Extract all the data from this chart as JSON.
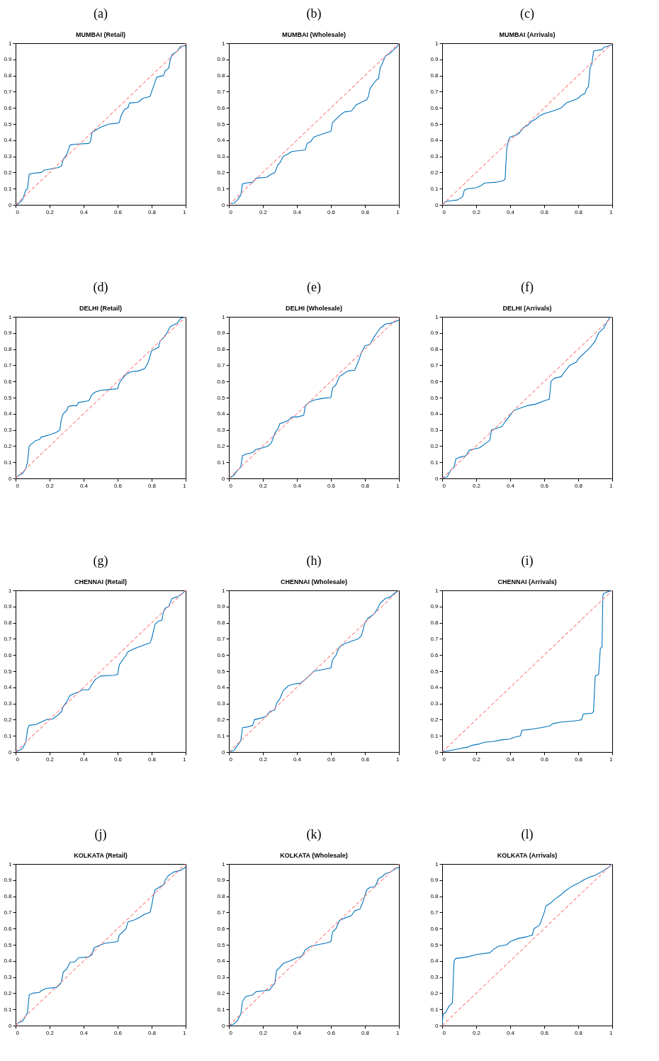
{
  "chart_data": [
    {
      "type": "line",
      "title": "(a)",
      "subtitle": "MUMBAI (Retail)",
      "xlim": [
        0,
        1
      ],
      "xticks": [
        0,
        0.2,
        0.4,
        0.6,
        0.8,
        1
      ],
      "ylim": [
        0,
        1
      ],
      "yticks": [
        0,
        0.1,
        0.2,
        0.3,
        0.4,
        0.5,
        0.6,
        0.7,
        0.8,
        0.9,
        1
      ],
      "series": [
        {
          "color": "#0072bd",
          "x": [
            0,
            0.02,
            0.04,
            0.05,
            0.06,
            0.07,
            0.08,
            0.1,
            0.15,
            0.17,
            0.25,
            0.27,
            0.28,
            0.3,
            0.32,
            0.35,
            0.43,
            0.44,
            0.45,
            0.5,
            0.55,
            0.6,
            0.61,
            0.62,
            0.64,
            0.66,
            0.67,
            0.72,
            0.75,
            0.79,
            0.8,
            0.83,
            0.87,
            0.88,
            0.9,
            0.91,
            0.92,
            0.95,
            0.97,
            1
          ],
          "values": [
            0,
            0.01,
            0.03,
            0.06,
            0.09,
            0.1,
            0.19,
            0.195,
            0.2,
            0.215,
            0.23,
            0.24,
            0.28,
            0.31,
            0.37,
            0.375,
            0.38,
            0.39,
            0.45,
            0.48,
            0.5,
            0.505,
            0.51,
            0.55,
            0.59,
            0.6,
            0.63,
            0.635,
            0.66,
            0.67,
            0.7,
            0.79,
            0.8,
            0.83,
            0.845,
            0.9,
            0.93,
            0.95,
            0.98,
            0.985
          ]
        },
        {
          "color": "#ff8080",
          "line_style": "dashed",
          "x": [
            0,
            1
          ],
          "values": [
            0,
            1
          ]
        }
      ]
    },
    {
      "type": "line",
      "title": "(b)",
      "subtitle": "MUMBAI (Wholesale)",
      "xlim": [
        0,
        1
      ],
      "xticks": [
        0,
        0.2,
        0.4,
        0.6,
        0.8,
        1
      ],
      "ylim": [
        0,
        1
      ],
      "yticks": [
        0,
        0.1,
        0.2,
        0.3,
        0.4,
        0.5,
        0.6,
        0.7,
        0.8,
        0.9,
        1
      ],
      "series": [
        {
          "color": "#0072bd",
          "x": [
            0,
            0.03,
            0.05,
            0.07,
            0.08,
            0.1,
            0.14,
            0.16,
            0.22,
            0.25,
            0.27,
            0.29,
            0.3,
            0.32,
            0.34,
            0.37,
            0.45,
            0.46,
            0.48,
            0.5,
            0.57,
            0.6,
            0.61,
            0.64,
            0.66,
            0.68,
            0.72,
            0.75,
            0.79,
            0.81,
            0.82,
            0.83,
            0.85,
            0.87,
            0.88,
            0.89,
            0.9,
            0.92,
            0.95,
            0.97,
            0.99,
            1
          ],
          "values": [
            0.01,
            0.01,
            0.03,
            0.06,
            0.13,
            0.135,
            0.14,
            0.165,
            0.17,
            0.19,
            0.2,
            0.25,
            0.26,
            0.3,
            0.31,
            0.33,
            0.34,
            0.38,
            0.39,
            0.42,
            0.445,
            0.455,
            0.51,
            0.54,
            0.56,
            0.575,
            0.58,
            0.62,
            0.64,
            0.65,
            0.67,
            0.72,
            0.75,
            0.775,
            0.78,
            0.85,
            0.87,
            0.92,
            0.94,
            0.96,
            0.98,
            1
          ]
        },
        {
          "color": "#ff8080",
          "line_style": "dashed",
          "x": [
            0,
            1
          ],
          "values": [
            0,
            1
          ]
        }
      ]
    },
    {
      "type": "line",
      "title": "(c)",
      "subtitle": "MUMBAI (Arrivals)",
      "xlim": [
        0,
        1
      ],
      "xticks": [
        0,
        0.2,
        0.4,
        0.6,
        0.8,
        1
      ],
      "ylim": [
        0,
        1
      ],
      "yticks": [
        0,
        0.1,
        0.2,
        0.3,
        0.4,
        0.5,
        0.6,
        0.7,
        0.8,
        0.9,
        1
      ],
      "series": [
        {
          "color": "#0072bd",
          "x": [
            0,
            0.02,
            0.05,
            0.09,
            0.12,
            0.13,
            0.15,
            0.2,
            0.23,
            0.25,
            0.32,
            0.36,
            0.37,
            0.38,
            0.39,
            0.4,
            0.43,
            0.45,
            0.48,
            0.5,
            0.53,
            0.55,
            0.57,
            0.6,
            0.65,
            0.7,
            0.73,
            0.78,
            0.8,
            0.82,
            0.84,
            0.85,
            0.86,
            0.87,
            0.88,
            0.89,
            0.9,
            0.94,
            0.95,
            1
          ],
          "values": [
            0,
            0.02,
            0.025,
            0.03,
            0.05,
            0.09,
            0.1,
            0.105,
            0.12,
            0.135,
            0.14,
            0.15,
            0.16,
            0.35,
            0.4,
            0.42,
            0.43,
            0.44,
            0.48,
            0.49,
            0.52,
            0.53,
            0.55,
            0.565,
            0.58,
            0.6,
            0.63,
            0.65,
            0.66,
            0.68,
            0.69,
            0.72,
            0.73,
            0.85,
            0.87,
            0.95,
            0.955,
            0.96,
            0.975,
            0.99
          ]
        },
        {
          "color": "#ff8080",
          "line_style": "dashed",
          "x": [
            0,
            1
          ],
          "values": [
            0,
            1
          ]
        }
      ]
    },
    {
      "type": "line",
      "title": "(d)",
      "subtitle": "DELHI (Retail)",
      "xlim": [
        0,
        1
      ],
      "xticks": [
        0,
        0.2,
        0.4,
        0.6,
        0.8,
        1
      ],
      "ylim": [
        0,
        1
      ],
      "yticks": [
        0,
        0.1,
        0.2,
        0.3,
        0.4,
        0.5,
        0.6,
        0.7,
        0.8,
        0.9,
        1
      ],
      "series": [
        {
          "color": "#0072bd",
          "x": [
            0,
            0.02,
            0.04,
            0.06,
            0.07,
            0.08,
            0.09,
            0.12,
            0.14,
            0.15,
            0.2,
            0.24,
            0.26,
            0.27,
            0.28,
            0.3,
            0.31,
            0.33,
            0.36,
            0.37,
            0.43,
            0.44,
            0.45,
            0.47,
            0.5,
            0.55,
            0.6,
            0.61,
            0.63,
            0.65,
            0.68,
            0.72,
            0.76,
            0.78,
            0.8,
            0.82,
            0.84,
            0.85,
            0.87,
            0.89,
            0.91,
            0.95,
            0.97,
            1
          ],
          "values": [
            0,
            0.02,
            0.03,
            0.06,
            0.1,
            0.2,
            0.21,
            0.235,
            0.24,
            0.255,
            0.27,
            0.285,
            0.3,
            0.37,
            0.4,
            0.42,
            0.445,
            0.45,
            0.45,
            0.47,
            0.48,
            0.5,
            0.52,
            0.535,
            0.545,
            0.55,
            0.555,
            0.59,
            0.62,
            0.645,
            0.66,
            0.665,
            0.68,
            0.72,
            0.79,
            0.8,
            0.81,
            0.85,
            0.87,
            0.9,
            0.94,
            0.96,
            0.99,
            1
          ]
        },
        {
          "color": "#ff8080",
          "line_style": "dashed",
          "x": [
            0,
            1
          ],
          "values": [
            0,
            1
          ]
        }
      ]
    },
    {
      "type": "line",
      "title": "(e)",
      "subtitle": "DELHI (Wholesale)",
      "xlim": [
        0,
        1
      ],
      "xticks": [
        0,
        0.2,
        0.4,
        0.6,
        0.8,
        1
      ],
      "ylim": [
        0,
        1
      ],
      "yticks": [
        0,
        0.1,
        0.2,
        0.3,
        0.4,
        0.5,
        0.6,
        0.7,
        0.8,
        0.9,
        1
      ],
      "series": [
        {
          "color": "#0072bd",
          "x": [
            0,
            0.03,
            0.05,
            0.07,
            0.08,
            0.1,
            0.14,
            0.16,
            0.2,
            0.23,
            0.25,
            0.27,
            0.29,
            0.3,
            0.32,
            0.35,
            0.37,
            0.4,
            0.44,
            0.45,
            0.47,
            0.5,
            0.55,
            0.6,
            0.61,
            0.63,
            0.65,
            0.67,
            0.7,
            0.74,
            0.76,
            0.78,
            0.8,
            0.83,
            0.85,
            0.87,
            0.89,
            0.92,
            0.95,
            0.98,
            1
          ],
          "values": [
            0,
            0.02,
            0.05,
            0.07,
            0.14,
            0.15,
            0.16,
            0.18,
            0.19,
            0.2,
            0.22,
            0.28,
            0.31,
            0.34,
            0.345,
            0.36,
            0.38,
            0.38,
            0.39,
            0.45,
            0.47,
            0.485,
            0.495,
            0.5,
            0.56,
            0.58,
            0.63,
            0.645,
            0.665,
            0.67,
            0.72,
            0.78,
            0.82,
            0.83,
            0.87,
            0.9,
            0.93,
            0.955,
            0.96,
            0.97,
            0.98
          ]
        },
        {
          "color": "#ff8080",
          "line_style": "dashed",
          "x": [
            0,
            1
          ],
          "values": [
            0,
            1
          ]
        }
      ]
    },
    {
      "type": "line",
      "title": "(f)",
      "subtitle": "DELHI (Arrivals)",
      "xlim": [
        0,
        1
      ],
      "xticks": [
        0,
        0.2,
        0.4,
        0.6,
        0.8,
        1
      ],
      "ylim": [
        0,
        1
      ],
      "yticks": [
        0,
        0.1,
        0.2,
        0.3,
        0.4,
        0.5,
        0.6,
        0.7,
        0.8,
        0.9,
        1
      ],
      "series": [
        {
          "color": "#0072bd",
          "x": [
            0,
            0.03,
            0.05,
            0.07,
            0.08,
            0.1,
            0.14,
            0.16,
            0.18,
            0.22,
            0.26,
            0.28,
            0.29,
            0.32,
            0.35,
            0.37,
            0.4,
            0.42,
            0.46,
            0.5,
            0.55,
            0.6,
            0.63,
            0.64,
            0.66,
            0.7,
            0.72,
            0.75,
            0.79,
            0.8,
            0.83,
            0.85,
            0.87,
            0.9,
            0.92,
            0.95,
            0.97,
            0.99,
            1
          ],
          "values": [
            0,
            0.01,
            0.05,
            0.07,
            0.12,
            0.13,
            0.14,
            0.175,
            0.18,
            0.19,
            0.22,
            0.235,
            0.3,
            0.31,
            0.32,
            0.35,
            0.39,
            0.42,
            0.435,
            0.45,
            0.46,
            0.48,
            0.49,
            0.6,
            0.62,
            0.63,
            0.66,
            0.7,
            0.72,
            0.74,
            0.77,
            0.79,
            0.81,
            0.85,
            0.9,
            0.93,
            0.97,
            1,
            1
          ]
        },
        {
          "color": "#ff8080",
          "line_style": "dashed",
          "x": [
            0,
            1
          ],
          "values": [
            0,
            1
          ]
        }
      ]
    },
    {
      "type": "line",
      "title": "(g)",
      "subtitle": "CHENNAI (Retail)",
      "xlim": [
        0,
        1
      ],
      "xticks": [
        0,
        0.2,
        0.4,
        0.6,
        0.8,
        1
      ],
      "ylim": [
        0,
        1
      ],
      "yticks": [
        0,
        0.1,
        0.2,
        0.3,
        0.4,
        0.5,
        0.6,
        0.7,
        0.8,
        0.9,
        1
      ],
      "series": [
        {
          "color": "#0072bd",
          "x": [
            0,
            0.04,
            0.06,
            0.07,
            0.08,
            0.12,
            0.15,
            0.18,
            0.22,
            0.25,
            0.27,
            0.28,
            0.3,
            0.32,
            0.34,
            0.37,
            0.39,
            0.43,
            0.45,
            0.47,
            0.5,
            0.58,
            0.6,
            0.61,
            0.63,
            0.65,
            0.66,
            0.7,
            0.75,
            0.79,
            0.8,
            0.82,
            0.84,
            0.86,
            0.87,
            0.88,
            0.9,
            0.92,
            0.95,
            0.98,
            1
          ],
          "values": [
            0,
            0.02,
            0.06,
            0.14,
            0.165,
            0.17,
            0.185,
            0.2,
            0.205,
            0.23,
            0.25,
            0.28,
            0.31,
            0.35,
            0.36,
            0.37,
            0.385,
            0.385,
            0.42,
            0.45,
            0.47,
            0.475,
            0.48,
            0.54,
            0.57,
            0.6,
            0.62,
            0.64,
            0.66,
            0.675,
            0.7,
            0.79,
            0.81,
            0.815,
            0.87,
            0.89,
            0.9,
            0.95,
            0.96,
            0.98,
            1
          ]
        },
        {
          "color": "#ff8080",
          "line_style": "dashed",
          "x": [
            0,
            1
          ],
          "values": [
            0,
            1
          ]
        }
      ]
    },
    {
      "type": "line",
      "title": "(h)",
      "subtitle": "CHENNAI (Wholesale)",
      "xlim": [
        0,
        1
      ],
      "xticks": [
        0,
        0.2,
        0.4,
        0.6,
        0.8,
        1
      ],
      "ylim": [
        0,
        1
      ],
      "yticks": [
        0,
        0.1,
        0.2,
        0.3,
        0.4,
        0.5,
        0.6,
        0.7,
        0.8,
        0.9,
        1
      ],
      "series": [
        {
          "color": "#0072bd",
          "x": [
            0,
            0.03,
            0.05,
            0.07,
            0.08,
            0.11,
            0.14,
            0.15,
            0.19,
            0.22,
            0.24,
            0.27,
            0.28,
            0.3,
            0.32,
            0.35,
            0.38,
            0.42,
            0.45,
            0.48,
            0.5,
            0.55,
            0.6,
            0.61,
            0.63,
            0.65,
            0.68,
            0.72,
            0.76,
            0.78,
            0.8,
            0.82,
            0.85,
            0.87,
            0.89,
            0.92,
            0.95,
            0.97,
            1
          ],
          "values": [
            0,
            0.01,
            0.04,
            0.07,
            0.15,
            0.155,
            0.165,
            0.2,
            0.21,
            0.22,
            0.25,
            0.26,
            0.3,
            0.33,
            0.38,
            0.41,
            0.42,
            0.425,
            0.45,
            0.48,
            0.5,
            0.51,
            0.52,
            0.57,
            0.6,
            0.65,
            0.67,
            0.685,
            0.7,
            0.72,
            0.8,
            0.83,
            0.85,
            0.88,
            0.92,
            0.95,
            0.96,
            0.98,
            1
          ]
        },
        {
          "color": "#ff8080",
          "line_style": "dashed",
          "x": [
            0,
            1
          ],
          "values": [
            0,
            1
          ]
        }
      ]
    },
    {
      "type": "line",
      "title": "(i)",
      "subtitle": "CHENNAI (Arrivals)",
      "xlim": [
        0,
        1
      ],
      "xticks": [
        0,
        0.2,
        0.4,
        0.6,
        0.8,
        1
      ],
      "ylim": [
        0,
        1
      ],
      "yticks": [
        0,
        0.1,
        0.2,
        0.3,
        0.4,
        0.5,
        0.6,
        0.7,
        0.8,
        0.9,
        1
      ],
      "series": [
        {
          "color": "#0072bd",
          "x": [
            0,
            0.05,
            0.1,
            0.15,
            0.17,
            0.22,
            0.25,
            0.3,
            0.35,
            0.4,
            0.42,
            0.46,
            0.47,
            0.52,
            0.58,
            0.63,
            0.65,
            0.7,
            0.75,
            0.8,
            0.82,
            0.83,
            0.88,
            0.89,
            0.9,
            0.91,
            0.92,
            0.93,
            0.94,
            0.945,
            0.95,
            0.97,
            1
          ],
          "values": [
            0,
            0.01,
            0.02,
            0.03,
            0.04,
            0.05,
            0.06,
            0.065,
            0.075,
            0.08,
            0.09,
            0.1,
            0.135,
            0.14,
            0.15,
            0.16,
            0.175,
            0.185,
            0.19,
            0.195,
            0.2,
            0.235,
            0.24,
            0.25,
            0.47,
            0.475,
            0.48,
            0.64,
            0.65,
            0.97,
            0.98,
            0.99,
            1
          ]
        },
        {
          "color": "#ff8080",
          "line_style": "dashed",
          "x": [
            0,
            1
          ],
          "values": [
            0,
            1
          ]
        }
      ]
    },
    {
      "type": "line",
      "title": "(j)",
      "subtitle": "KOLKATA (Retail)",
      "xlim": [
        0,
        1
      ],
      "xticks": [
        0,
        0.2,
        0.4,
        0.6,
        0.8,
        1
      ],
      "ylim": [
        0,
        1
      ],
      "yticks": [
        0,
        0.1,
        0.2,
        0.3,
        0.4,
        0.5,
        0.6,
        0.7,
        0.8,
        0.9,
        1
      ],
      "series": [
        {
          "color": "#0072bd",
          "x": [
            0,
            0.02,
            0.04,
            0.06,
            0.07,
            0.08,
            0.1,
            0.14,
            0.15,
            0.18,
            0.24,
            0.26,
            0.27,
            0.28,
            0.3,
            0.32,
            0.35,
            0.37,
            0.43,
            0.45,
            0.46,
            0.5,
            0.53,
            0.6,
            0.61,
            0.63,
            0.65,
            0.66,
            0.7,
            0.73,
            0.76,
            0.79,
            0.8,
            0.81,
            0.82,
            0.85,
            0.87,
            0.88,
            0.9,
            0.93,
            0.97,
            1
          ],
          "values": [
            0,
            0.02,
            0.025,
            0.06,
            0.08,
            0.19,
            0.2,
            0.205,
            0.215,
            0.23,
            0.235,
            0.255,
            0.27,
            0.33,
            0.35,
            0.39,
            0.395,
            0.42,
            0.425,
            0.44,
            0.48,
            0.5,
            0.51,
            0.52,
            0.56,
            0.58,
            0.6,
            0.64,
            0.655,
            0.67,
            0.69,
            0.7,
            0.74,
            0.8,
            0.84,
            0.86,
            0.87,
            0.9,
            0.93,
            0.95,
            0.96,
            0.98
          ]
        },
        {
          "color": "#ff8080",
          "line_style": "dashed",
          "x": [
            0,
            1
          ],
          "values": [
            0,
            1
          ]
        }
      ]
    },
    {
      "type": "line",
      "title": "(k)",
      "subtitle": "KOLKATA (Wholesale)",
      "xlim": [
        0,
        1
      ],
      "xticks": [
        0,
        0.2,
        0.4,
        0.6,
        0.8,
        1
      ],
      "ylim": [
        0,
        1
      ],
      "yticks": [
        0,
        0.1,
        0.2,
        0.3,
        0.4,
        0.5,
        0.6,
        0.7,
        0.8,
        0.9,
        1
      ],
      "series": [
        {
          "color": "#0072bd",
          "x": [
            0,
            0.03,
            0.05,
            0.07,
            0.08,
            0.1,
            0.14,
            0.16,
            0.2,
            0.24,
            0.26,
            0.27,
            0.28,
            0.3,
            0.32,
            0.36,
            0.4,
            0.43,
            0.45,
            0.48,
            0.52,
            0.57,
            0.6,
            0.61,
            0.63,
            0.65,
            0.68,
            0.72,
            0.74,
            0.77,
            0.79,
            0.81,
            0.83,
            0.86,
            0.88,
            0.9,
            0.92,
            0.95,
            0.98,
            1
          ],
          "values": [
            0,
            0.01,
            0.03,
            0.07,
            0.15,
            0.18,
            0.19,
            0.21,
            0.215,
            0.22,
            0.25,
            0.26,
            0.34,
            0.36,
            0.385,
            0.4,
            0.42,
            0.43,
            0.47,
            0.49,
            0.5,
            0.51,
            0.52,
            0.58,
            0.6,
            0.65,
            0.665,
            0.68,
            0.71,
            0.72,
            0.77,
            0.84,
            0.855,
            0.86,
            0.91,
            0.92,
            0.94,
            0.95,
            0.97,
            0.98
          ]
        },
        {
          "color": "#ff8080",
          "line_style": "dashed",
          "x": [
            0,
            1
          ],
          "values": [
            0,
            1
          ]
        }
      ]
    },
    {
      "type": "line",
      "title": "(l)",
      "subtitle": "KOLKATA (Arrivals)",
      "xlim": [
        0,
        1
      ],
      "xticks": [
        0,
        0.2,
        0.4,
        0.6,
        0.8,
        1
      ],
      "ylim": [
        0,
        1
      ],
      "yticks": [
        0,
        0.1,
        0.2,
        0.3,
        0.4,
        0.5,
        0.6,
        0.7,
        0.8,
        0.9,
        1
      ],
      "series": [
        {
          "color": "#0072bd",
          "x": [
            0,
            0.005,
            0.02,
            0.03,
            0.04,
            0.05,
            0.06,
            0.07,
            0.08,
            0.15,
            0.2,
            0.28,
            0.3,
            0.33,
            0.38,
            0.4,
            0.45,
            0.5,
            0.53,
            0.54,
            0.57,
            0.58,
            0.6,
            0.61,
            0.64,
            0.66,
            0.7,
            0.72,
            0.76,
            0.8,
            0.83,
            0.87,
            0.9,
            0.95,
            0.98,
            1
          ],
          "values": [
            0,
            0.07,
            0.08,
            0.1,
            0.12,
            0.13,
            0.14,
            0.4,
            0.415,
            0.425,
            0.44,
            0.45,
            0.47,
            0.49,
            0.5,
            0.52,
            0.54,
            0.55,
            0.56,
            0.6,
            0.62,
            0.64,
            0.7,
            0.74,
            0.76,
            0.78,
            0.81,
            0.83,
            0.86,
            0.88,
            0.9,
            0.92,
            0.93,
            0.96,
            0.98,
            1
          ]
        },
        {
          "color": "#ff8080",
          "line_style": "dashed",
          "x": [
            0,
            1
          ],
          "values": [
            0,
            1
          ]
        }
      ]
    }
  ]
}
